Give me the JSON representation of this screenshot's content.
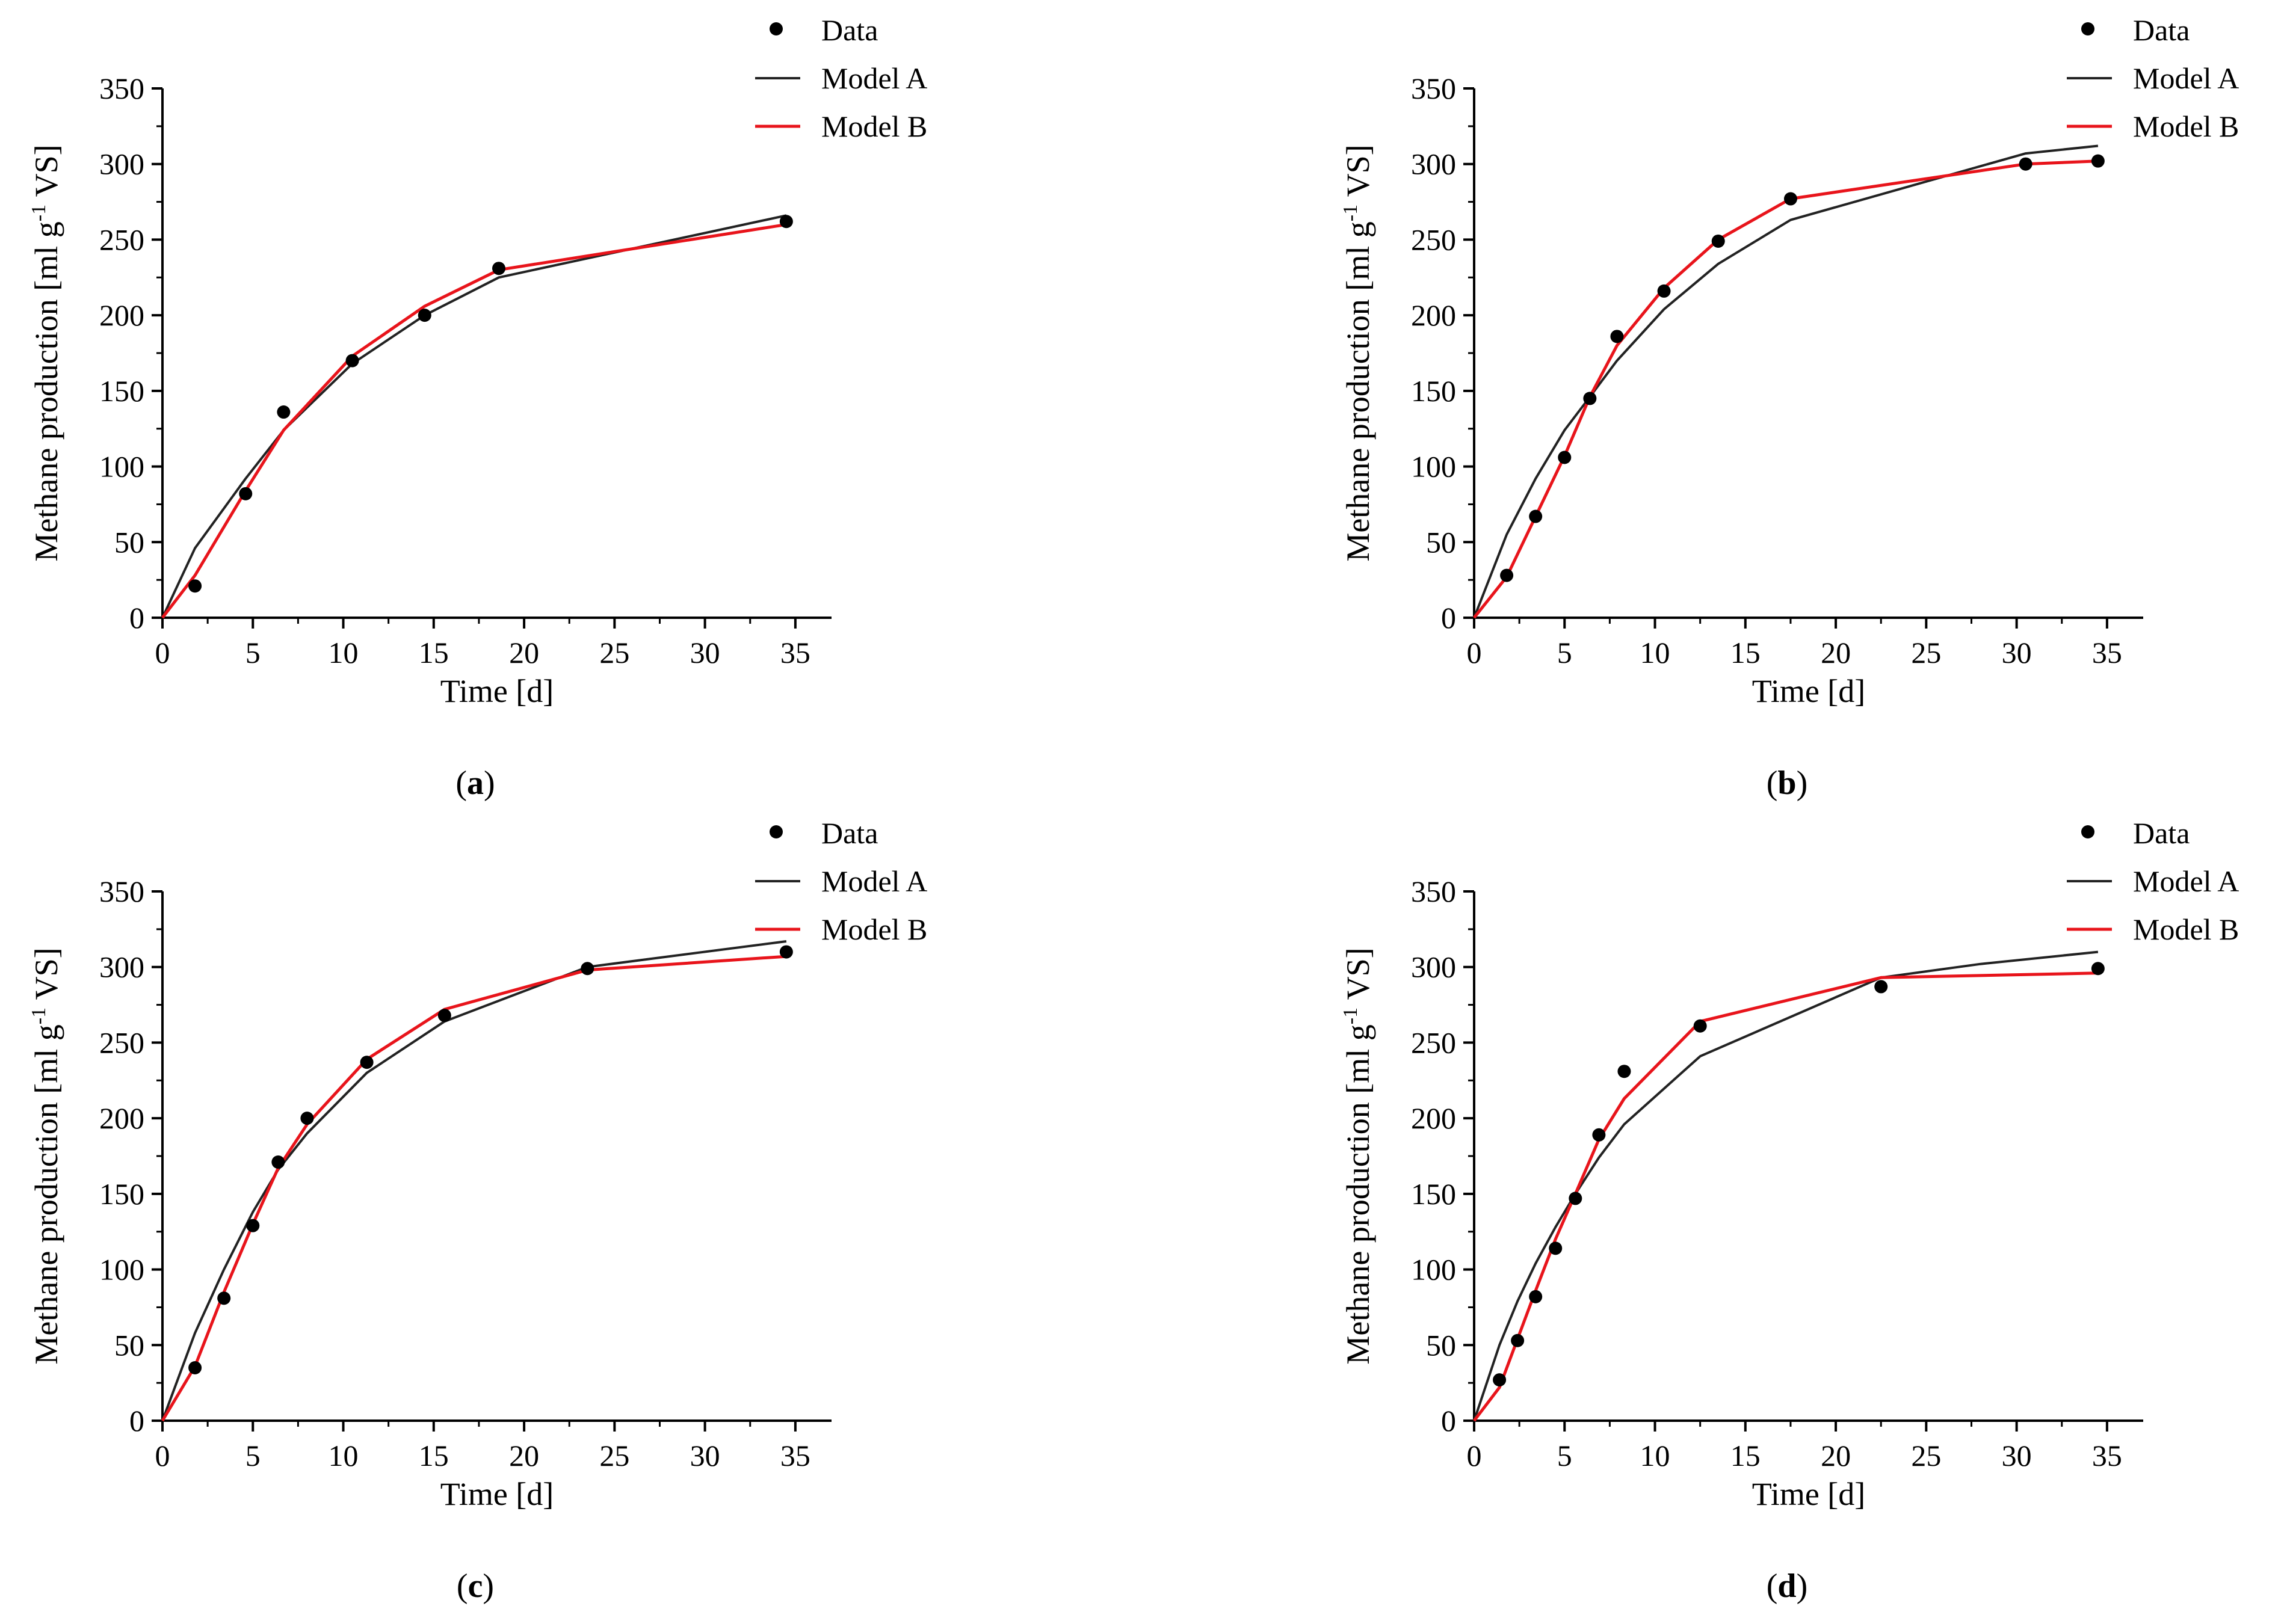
{
  "figure": {
    "panels_label_style": "bold letter in parentheses"
  },
  "colors": {
    "model_a": "#222222",
    "model_b": "#e8141b",
    "data": "#000000",
    "axis": "#000000"
  },
  "chart_data": [
    {
      "type": "line",
      "panel_label": "a",
      "xlabel": "Time [d]",
      "ylabel_main": "Methane production [ml g",
      "ylabel_sup": "-1",
      "ylabel_tail": " VS]",
      "xlim": [
        0,
        37
      ],
      "ylim": [
        0,
        350
      ],
      "xticks": [
        0,
        5,
        10,
        15,
        20,
        25,
        30,
        35
      ],
      "yticks": [
        0,
        50,
        100,
        150,
        200,
        250,
        300,
        350
      ],
      "legend": [
        "Data",
        "Model A",
        "Model B"
      ],
      "legend_position": "top-right",
      "series": [
        {
          "name": "Data",
          "kind": "scatter",
          "x": [
            1.8,
            4.6,
            6.7,
            10.5,
            14.5,
            18.6,
            34.5
          ],
          "y": [
            21,
            82,
            136,
            170,
            200,
            231,
            262
          ]
        },
        {
          "name": "Model A",
          "kind": "line",
          "x": [
            0,
            1.8,
            4.6,
            6.7,
            10.5,
            14.5,
            18.6,
            34.5
          ],
          "y": [
            0,
            46,
            92,
            124,
            168,
            200,
            225,
            266
          ]
        },
        {
          "name": "Model B",
          "kind": "line",
          "x": [
            0,
            1.8,
            4.6,
            6.7,
            10.5,
            14.5,
            18.6,
            34.5
          ],
          "y": [
            0,
            28,
            84,
            124,
            173,
            206,
            230,
            260
          ]
        }
      ]
    },
    {
      "type": "line",
      "panel_label": "b",
      "xlabel": "Time [d]",
      "ylabel_main": "Methane production [ml g",
      "ylabel_sup": "-1",
      "ylabel_tail": " VS]",
      "xlim": [
        0,
        37
      ],
      "ylim": [
        0,
        350
      ],
      "xticks": [
        0,
        5,
        10,
        15,
        20,
        25,
        30,
        35
      ],
      "yticks": [
        0,
        50,
        100,
        150,
        200,
        250,
        300,
        350
      ],
      "legend": [
        "Data",
        "Model A",
        "Model B"
      ],
      "legend_position": "top-right",
      "series": [
        {
          "name": "Data",
          "kind": "scatter",
          "x": [
            1.8,
            3.4,
            5.0,
            6.4,
            7.9,
            10.5,
            13.5,
            17.5,
            30.5,
            34.5
          ],
          "y": [
            28,
            67,
            106,
            145,
            186,
            216,
            249,
            277,
            300,
            302
          ]
        },
        {
          "name": "Model A",
          "kind": "line",
          "x": [
            0,
            1.8,
            3.4,
            5.0,
            6.4,
            7.9,
            10.5,
            13.5,
            17.5,
            30.5,
            34.5
          ],
          "y": [
            0,
            55,
            92,
            124,
            146,
            170,
            204,
            234,
            263,
            307,
            312
          ]
        },
        {
          "name": "Model B",
          "kind": "line",
          "x": [
            0,
            1.8,
            3.4,
            5.0,
            6.4,
            7.9,
            10.5,
            13.5,
            17.5,
            30.5,
            34.5
          ],
          "y": [
            0,
            27,
            67,
            107,
            146,
            180,
            218,
            250,
            277,
            300,
            302
          ]
        }
      ]
    },
    {
      "type": "line",
      "panel_label": "c",
      "xlabel": "Time [d]",
      "ylabel_main": "Methane production [ml g",
      "ylabel_sup": "-1",
      "ylabel_tail": " VS]",
      "xlim": [
        0,
        37
      ],
      "ylim": [
        0,
        350
      ],
      "xticks": [
        0,
        5,
        10,
        15,
        20,
        25,
        30,
        35
      ],
      "yticks": [
        0,
        50,
        100,
        150,
        200,
        250,
        300,
        350
      ],
      "legend": [
        "Data",
        "Model A",
        "Model B"
      ],
      "legend_position": "top-right",
      "series": [
        {
          "name": "Data",
          "kind": "scatter",
          "x": [
            1.8,
            3.4,
            5.0,
            6.4,
            8.0,
            11.3,
            15.6,
            23.5,
            34.5
          ],
          "y": [
            35,
            81,
            129,
            171,
            200,
            237,
            268,
            299,
            310
          ]
        },
        {
          "name": "Model A",
          "kind": "line",
          "x": [
            0,
            1.8,
            3.4,
            5.0,
            6.4,
            8.0,
            11.3,
            15.6,
            23.5,
            34.5
          ],
          "y": [
            0,
            58,
            100,
            138,
            166,
            190,
            230,
            264,
            300,
            317
          ]
        },
        {
          "name": "Model B",
          "kind": "line",
          "x": [
            0,
            1.8,
            3.4,
            5.0,
            6.4,
            8.0,
            11.3,
            15.6,
            23.5,
            34.5
          ],
          "y": [
            0,
            36,
            85,
            130,
            167,
            196,
            239,
            272,
            298,
            307
          ]
        }
      ]
    },
    {
      "type": "line",
      "panel_label": "d",
      "xlabel": "Time [d]",
      "ylabel_main": "Methane production [ml g",
      "ylabel_sup": "-1",
      "ylabel_tail": " VS]",
      "xlim": [
        0,
        37
      ],
      "ylim": [
        0,
        350
      ],
      "xticks": [
        0,
        5,
        10,
        15,
        20,
        25,
        30,
        35
      ],
      "yticks": [
        0,
        50,
        100,
        150,
        200,
        250,
        300,
        350
      ],
      "legend": [
        "Data",
        "Model A",
        "Model B"
      ],
      "legend_position": "top-right",
      "series": [
        {
          "name": "Data",
          "kind": "scatter",
          "x": [
            1.4,
            2.4,
            3.4,
            4.5,
            5.6,
            6.9,
            8.3,
            12.5,
            22.5,
            34.5
          ],
          "y": [
            27,
            53,
            82,
            114,
            147,
            189,
            231,
            261,
            287,
            299
          ]
        },
        {
          "name": "Model A",
          "kind": "line",
          "x": [
            0,
            1.4,
            2.4,
            3.4,
            4.5,
            5.6,
            6.9,
            8.3,
            12.5,
            22.5,
            28,
            34.5
          ],
          "y": [
            0,
            50,
            79,
            104,
            128,
            150,
            174,
            196,
            241,
            293,
            302,
            310
          ]
        },
        {
          "name": "Model B",
          "kind": "line",
          "x": [
            0,
            1.4,
            2.4,
            3.4,
            4.5,
            5.6,
            6.9,
            8.3,
            12.5,
            22.5,
            34.5
          ],
          "y": [
            0,
            22,
            54,
            86,
            120,
            150,
            186,
            213,
            264,
            293,
            296
          ]
        }
      ]
    }
  ]
}
